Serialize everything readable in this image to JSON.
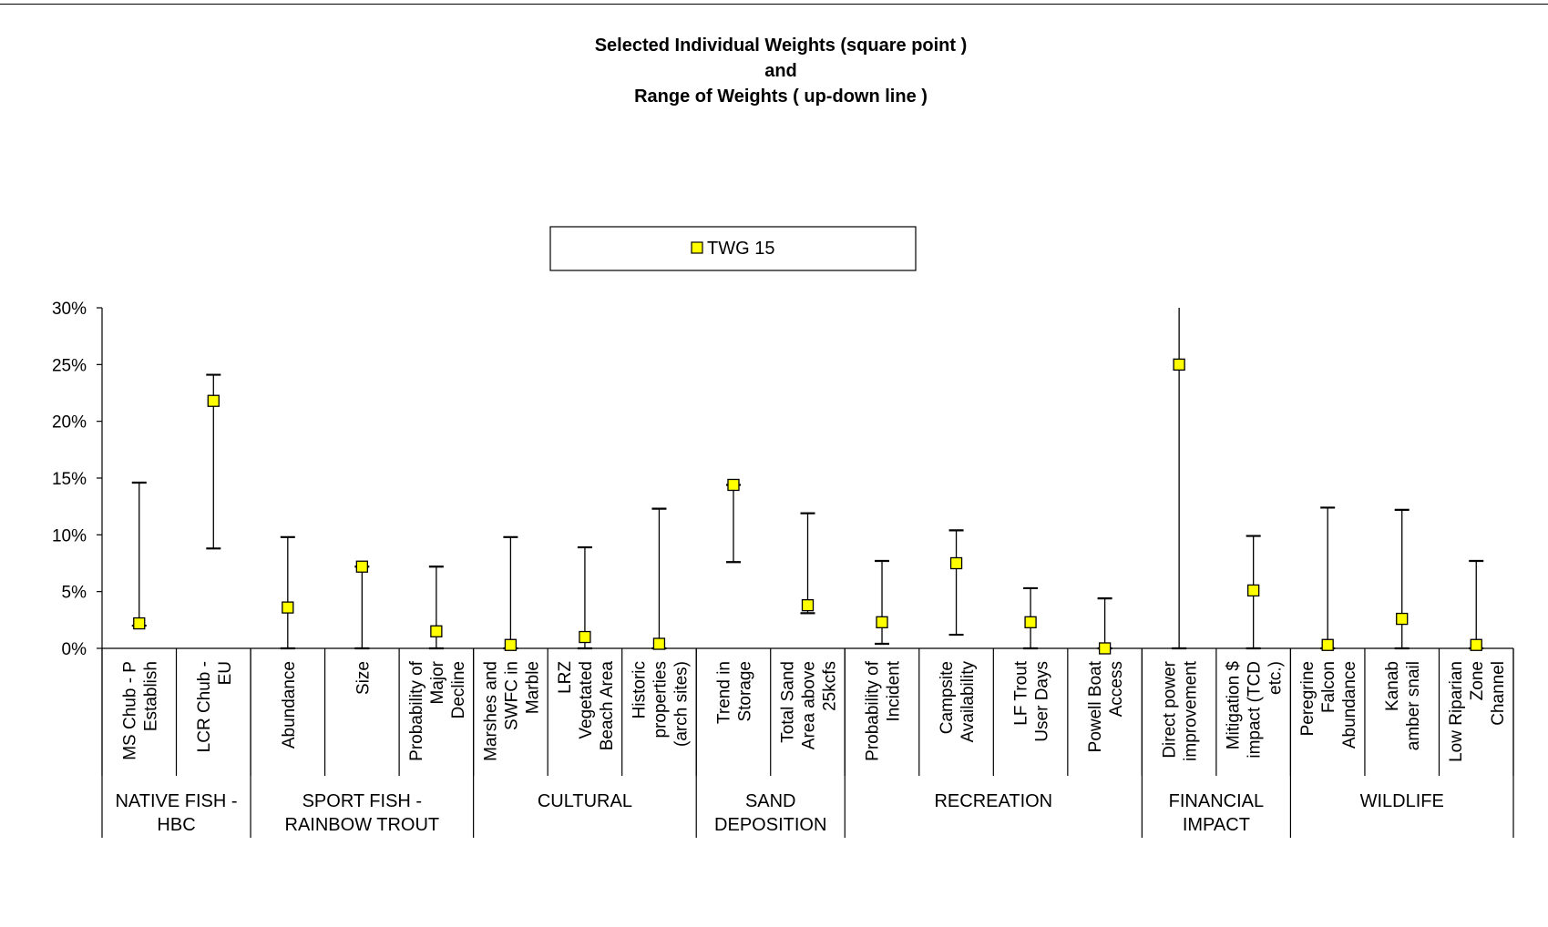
{
  "chart_data": {
    "type": "scatter",
    "title": [
      "Selected Individual Weights  (square point )",
      "and",
      "Range of Weights ( up-down line )"
    ],
    "legend": {
      "position": "top-center",
      "entries": [
        "TWG 15"
      ]
    },
    "marker_color": "#ffff00",
    "marker_edge_color": "#000000",
    "ylim": [
      0,
      30
    ],
    "y_ticks": [
      "0%",
      "5%",
      "10%",
      "15%",
      "20%",
      "25%",
      "30%"
    ],
    "y_tick_values": [
      0,
      5,
      10,
      15,
      20,
      25,
      30
    ],
    "grid": false,
    "categories": [
      [
        "MS Chub - P",
        "Establish"
      ],
      [
        "LCR Chub -",
        "EU"
      ],
      [
        "Abundance"
      ],
      [
        "Size"
      ],
      [
        "Probability of",
        "Major",
        "Decline"
      ],
      [
        "Marshes and",
        "SWFC in",
        "Marble"
      ],
      [
        "LRZ",
        "Vegetated",
        "Beach Area"
      ],
      [
        "Historic",
        "properties",
        "(arch sites)"
      ],
      [
        "Trend in",
        "Storage"
      ],
      [
        "Total Sand",
        "Area above",
        "25kcfs"
      ],
      [
        "Probability of",
        "Incident"
      ],
      [
        "Campsite",
        "Availability"
      ],
      [
        "LF Trout",
        "User Days"
      ],
      [
        "Powell Boat",
        "Access"
      ],
      [
        "Direct power",
        "improvement"
      ],
      [
        "Mitigation $",
        "impact (TCD",
        "etc.)"
      ],
      [
        "Peregrine",
        "Falcon",
        "Abundance"
      ],
      [
        "Kanab",
        "amber snail"
      ],
      [
        "Low Riparian",
        "Zone",
        "Channel"
      ]
    ],
    "groups": [
      {
        "label": [
          "NATIVE FISH -",
          "HBC"
        ],
        "span": 2
      },
      {
        "label": [
          "SPORT FISH -",
          "RAINBOW TROUT"
        ],
        "span": 3
      },
      {
        "label": [
          "CULTURAL"
        ],
        "span": 3
      },
      {
        "label": [
          "SAND",
          "DEPOSITION"
        ],
        "span": 2
      },
      {
        "label": [
          "RECREATION"
        ],
        "span": 4
      },
      {
        "label": [
          "FINANCIAL",
          "IMPACT"
        ],
        "span": 2
      },
      {
        "label": [
          "WILDLIFE"
        ],
        "span": 3
      }
    ],
    "series": [
      {
        "name": "TWG 15",
        "values": [
          2.2,
          21.8,
          3.6,
          7.2,
          1.5,
          0.3,
          1.0,
          0.4,
          14.4,
          3.8,
          2.3,
          7.5,
          2.3,
          0.0,
          25.0,
          5.1,
          0.3,
          2.6,
          0.3
        ]
      },
      {
        "name": "range_high",
        "values": [
          14.6,
          24.1,
          9.8,
          7.2,
          7.2,
          9.8,
          8.9,
          12.3,
          14.4,
          11.9,
          7.7,
          10.4,
          5.3,
          4.4,
          30.0,
          9.9,
          12.4,
          12.2,
          7.7
        ]
      },
      {
        "name": "range_low",
        "values": [
          2.0,
          8.8,
          0.0,
          0.0,
          0.0,
          0.0,
          0.0,
          0.0,
          7.6,
          3.1,
          0.4,
          1.2,
          0.0,
          0.0,
          0.0,
          0.0,
          0.0,
          0.0,
          0.0
        ]
      }
    ]
  }
}
